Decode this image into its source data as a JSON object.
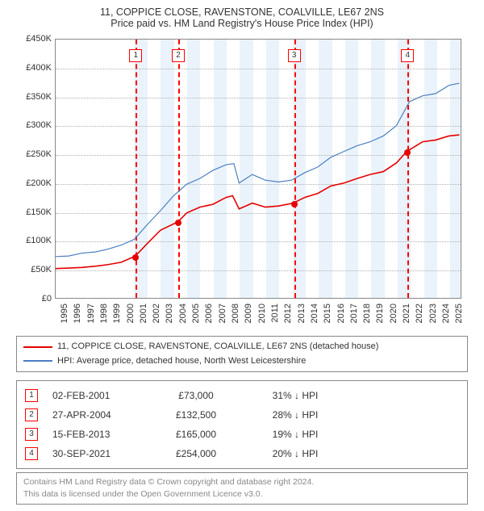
{
  "title": {
    "line1": "11, COPPICE CLOSE, RAVENSTONE, COALVILLE, LE67 2NS",
    "line2": "Price paid vs. HM Land Registry's House Price Index (HPI)"
  },
  "chart": {
    "type": "line",
    "background_color": "#ffffff",
    "grid_color": "#b0b0b0",
    "band_color": "#eaf3fb",
    "border_color": "#888888",
    "y": {
      "min": 0,
      "max": 450,
      "step": 50,
      "prefix": "£",
      "suffix": "K",
      "ticks": [
        0,
        50,
        100,
        150,
        200,
        250,
        300,
        350,
        400,
        450
      ]
    },
    "x": {
      "min": 1995,
      "max": 2025.9,
      "step": 1,
      "ticks": [
        1995,
        1996,
        1997,
        1998,
        1999,
        2000,
        2001,
        2002,
        2003,
        2004,
        2005,
        2006,
        2007,
        2008,
        2009,
        2010,
        2011,
        2012,
        2013,
        2014,
        2015,
        2016,
        2017,
        2018,
        2019,
        2020,
        2021,
        2022,
        2023,
        2024,
        2025
      ]
    },
    "bands": [
      {
        "from": 2001,
        "to": 2002
      },
      {
        "from": 2003,
        "to": 2004
      },
      {
        "from": 2005,
        "to": 2006
      },
      {
        "from": 2007,
        "to": 2008
      },
      {
        "from": 2009,
        "to": 2010
      },
      {
        "from": 2011,
        "to": 2012
      },
      {
        "from": 2013,
        "to": 2014
      },
      {
        "from": 2015,
        "to": 2016
      },
      {
        "from": 2017,
        "to": 2018
      },
      {
        "from": 2019,
        "to": 2020
      },
      {
        "from": 2021,
        "to": 2022
      },
      {
        "from": 2023,
        "to": 2024
      },
      {
        "from": 2025,
        "to": 2025.9
      }
    ],
    "vlines_at": [
      2001.09,
      2004.32,
      2013.13,
      2021.75
    ],
    "series": [
      {
        "name": "price_paid",
        "label": "11, COPPICE CLOSE, RAVENSTONE, COALVILLE, LE67 2NS (detached house)",
        "color": "#e60000",
        "width": 1.6,
        "points": [
          [
            1995,
            51
          ],
          [
            1996,
            52
          ],
          [
            1997,
            53
          ],
          [
            1998,
            55
          ],
          [
            1999,
            58
          ],
          [
            2000,
            62
          ],
          [
            2001.09,
            73
          ],
          [
            2002,
            95
          ],
          [
            2003,
            118
          ],
          [
            2004.32,
            132.5
          ],
          [
            2005,
            148
          ],
          [
            2006,
            158
          ],
          [
            2007,
            163
          ],
          [
            2008,
            175
          ],
          [
            2008.5,
            178
          ],
          [
            2009,
            155
          ],
          [
            2010,
            165
          ],
          [
            2011,
            158
          ],
          [
            2012,
            160
          ],
          [
            2013.13,
            165
          ],
          [
            2014,
            175
          ],
          [
            2015,
            182
          ],
          [
            2016,
            195
          ],
          [
            2017,
            200
          ],
          [
            2018,
            208
          ],
          [
            2019,
            215
          ],
          [
            2020,
            220
          ],
          [
            2021,
            235
          ],
          [
            2021.75,
            254
          ],
          [
            2022,
            258
          ],
          [
            2023,
            272
          ],
          [
            2024,
            275
          ],
          [
            2025,
            282
          ],
          [
            2025.8,
            284
          ]
        ],
        "markers": [
          {
            "n": 1,
            "x": 2001.09,
            "y": 73
          },
          {
            "n": 2,
            "x": 2004.32,
            "y": 132.5
          },
          {
            "n": 3,
            "x": 2013.13,
            "y": 165
          },
          {
            "n": 4,
            "x": 2021.75,
            "y": 254
          }
        ]
      },
      {
        "name": "hpi",
        "label": "HPI: Average price, detached house, North West Leicestershire",
        "color": "#4a7fc1",
        "width": 1.2,
        "points": [
          [
            1995,
            72
          ],
          [
            1996,
            73
          ],
          [
            1997,
            78
          ],
          [
            1998,
            80
          ],
          [
            1999,
            85
          ],
          [
            2000,
            92
          ],
          [
            2001,
            102
          ],
          [
            2002,
            128
          ],
          [
            2003,
            152
          ],
          [
            2004,
            178
          ],
          [
            2005,
            198
          ],
          [
            2006,
            208
          ],
          [
            2007,
            222
          ],
          [
            2008,
            232
          ],
          [
            2008.6,
            234
          ],
          [
            2009,
            200
          ],
          [
            2010,
            215
          ],
          [
            2011,
            205
          ],
          [
            2012,
            202
          ],
          [
            2013,
            205
          ],
          [
            2014,
            218
          ],
          [
            2015,
            228
          ],
          [
            2016,
            245
          ],
          [
            2017,
            255
          ],
          [
            2018,
            265
          ],
          [
            2019,
            272
          ],
          [
            2020,
            282
          ],
          [
            2021,
            300
          ],
          [
            2022,
            342
          ],
          [
            2023,
            352
          ],
          [
            2024,
            356
          ],
          [
            2025,
            370
          ],
          [
            2025.8,
            374
          ]
        ]
      }
    ]
  },
  "legend": {
    "items": [
      {
        "color": "#e60000",
        "text": "11, COPPICE CLOSE, RAVENSTONE, COALVILLE, LE67 2NS (detached house)"
      },
      {
        "color": "#4a7fc1",
        "text": "HPI: Average price, detached house, North West Leicestershire"
      }
    ]
  },
  "sales": [
    {
      "n": "1",
      "date": "02-FEB-2001",
      "price": "£73,000",
      "diff": "31% ↓ HPI"
    },
    {
      "n": "2",
      "date": "27-APR-2004",
      "price": "£132,500",
      "diff": "28% ↓ HPI"
    },
    {
      "n": "3",
      "date": "15-FEB-2013",
      "price": "£165,000",
      "diff": "19% ↓ HPI"
    },
    {
      "n": "4",
      "date": "30-SEP-2021",
      "price": "£254,000",
      "diff": "20% ↓ HPI"
    }
  ],
  "footer": {
    "line1": "Contains HM Land Registry data © Crown copyright and database right 2024.",
    "line2": "This data is licensed under the Open Government Licence v3.0."
  }
}
